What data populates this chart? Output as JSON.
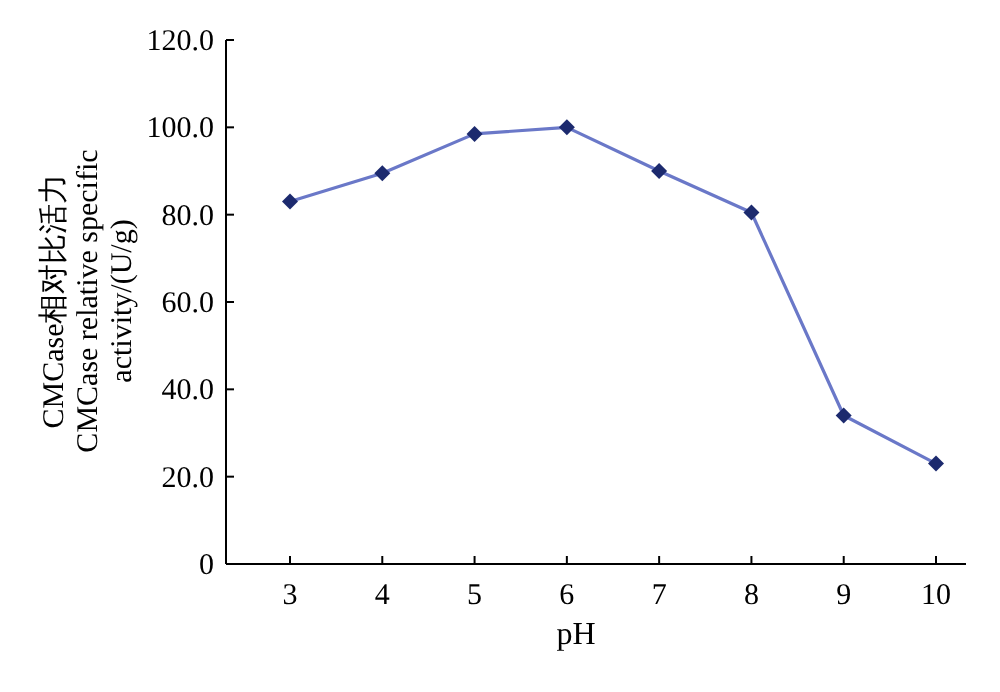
{
  "chart_data": {
    "type": "line",
    "xlabel": "pH",
    "ylabel": "CMCase相对比活力 CMCase relative specific activity/(U/g)",
    "categories": [
      "3",
      "4",
      "5",
      "6",
      "7",
      "8",
      "9",
      "10"
    ],
    "series": [
      {
        "color": "#6a78c8",
        "values": [
          83,
          89.5,
          98.5,
          100,
          90,
          80.5,
          34,
          23
        ]
      }
    ],
    "ylim": [
      0,
      120
    ],
    "yticks": [
      {
        "value": 0,
        "label": "0"
      },
      {
        "value": 20,
        "label": "20.0"
      },
      {
        "value": 40,
        "label": "40.0"
      },
      {
        "value": 60,
        "label": "60.0"
      },
      {
        "value": 80,
        "label": "80.0"
      },
      {
        "value": 100,
        "label": "100.0"
      },
      {
        "value": 120,
        "label": "120.0"
      }
    ],
    "marker": "diamond",
    "line_style": "solid",
    "grid": false
  }
}
